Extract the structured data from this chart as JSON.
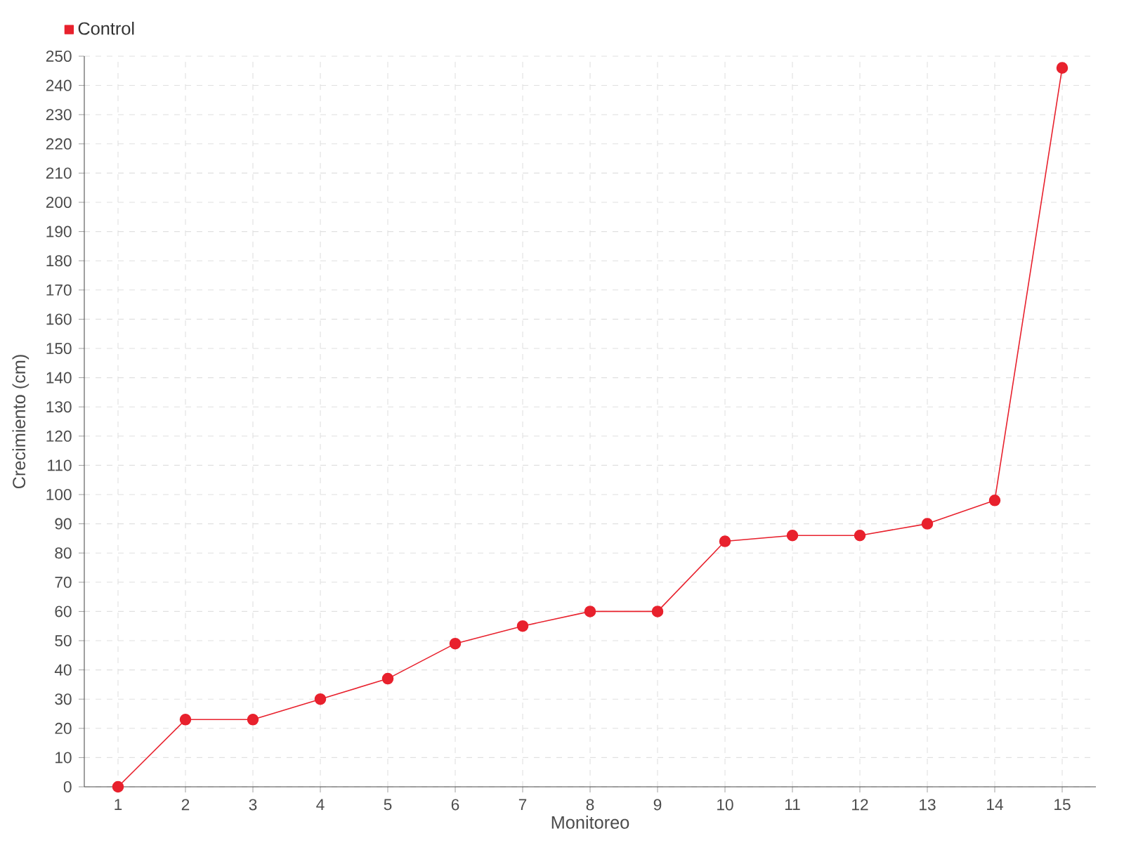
{
  "chart_data": {
    "type": "line",
    "xlabel": "Monitoreo",
    "ylabel": "Crecimiento (cm)",
    "categories": [
      "1",
      "2",
      "3",
      "4",
      "5",
      "6",
      "7",
      "8",
      "9",
      "10",
      "11",
      "12",
      "13",
      "14",
      "15"
    ],
    "series": [
      {
        "name": "Control",
        "color": "#e8212d",
        "values": [
          0,
          23,
          23,
          30,
          37,
          49,
          55,
          60,
          60,
          84,
          86,
          86,
          90,
          98,
          246
        ]
      }
    ],
    "ylim": [
      0,
      250
    ],
    "yticks": [
      0,
      10,
      20,
      30,
      40,
      50,
      60,
      70,
      80,
      90,
      100,
      110,
      120,
      130,
      140,
      150,
      160,
      170,
      180,
      190,
      200,
      210,
      220,
      230,
      240,
      250
    ],
    "grid": true,
    "legend": "top left",
    "marker": "circle",
    "line_style": "solid"
  }
}
